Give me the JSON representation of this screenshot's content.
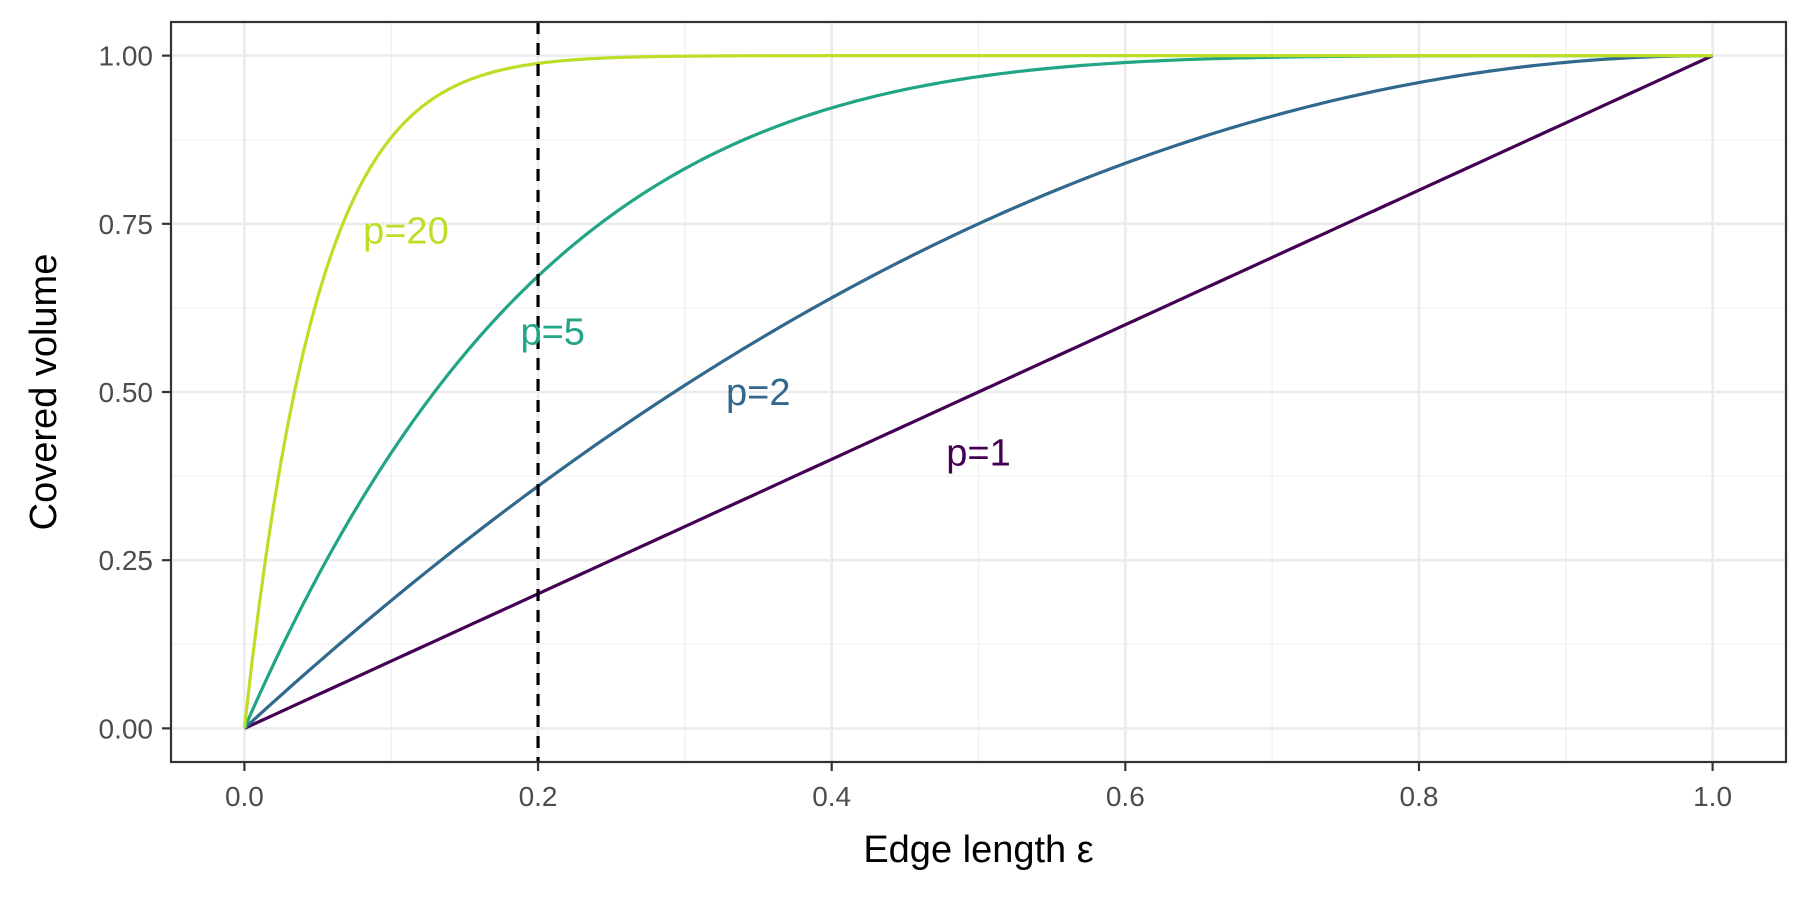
{
  "chart_data": {
    "type": "line",
    "title": "",
    "xlabel": "Edge length ε",
    "ylabel": "Covered volume",
    "xlim": [
      -0.05,
      1.05
    ],
    "ylim": [
      -0.05,
      1.05
    ],
    "grid": true,
    "x_ticks": [
      0.0,
      0.2,
      0.4,
      0.6,
      0.8,
      1.0
    ],
    "x_tick_labels": [
      "0.0",
      "0.2",
      "0.4",
      "0.6",
      "0.8",
      "1.0"
    ],
    "y_ticks": [
      0.0,
      0.25,
      0.5,
      0.75,
      1.0
    ],
    "y_tick_labels": [
      "0.00",
      "0.25",
      "0.50",
      "0.75",
      "1.00"
    ],
    "formula": "1 - (1 - x)^p",
    "series": [
      {
        "label": "p=1",
        "p": 1,
        "color": "#440154",
        "label_pos": [
          0.5,
          0.41
        ]
      },
      {
        "label": "p=2",
        "p": 2,
        "color": "#31688E",
        "label_pos": [
          0.35,
          0.5
        ]
      },
      {
        "label": "p=5",
        "p": 5,
        "color": "#21A585",
        "label_pos": [
          0.21,
          0.59
        ]
      },
      {
        "label": "p=20",
        "p": 20,
        "color": "#BBDF27",
        "label_pos": [
          0.11,
          0.74
        ]
      }
    ],
    "vline": {
      "x": 0.2,
      "style": "dashed",
      "color": "#000000"
    }
  }
}
